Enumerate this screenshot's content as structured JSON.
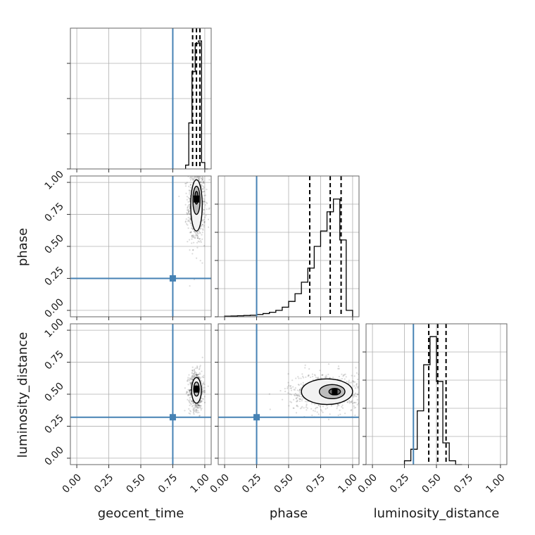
{
  "chart_data": {
    "type": "corner",
    "parameters": [
      "geocent_time",
      "phase",
      "luminosity_distance"
    ],
    "axis_range": [
      -0.05,
      1.05
    ],
    "ticks": [
      0.0,
      0.25,
      0.5,
      0.75,
      1.0
    ],
    "tick_labels": [
      "0.00",
      "0.25",
      "0.50",
      "0.75",
      "1.00"
    ],
    "grid": true,
    "truth_color": "#4682b4",
    "truths": {
      "geocent_time": 0.75,
      "phase": 0.25,
      "luminosity_distance": 0.32
    },
    "quantiles": {
      "geocent_time": [
        0.905,
        0.935,
        0.962
      ],
      "phase": [
        0.665,
        0.825,
        0.91
      ],
      "luminosity_distance": [
        0.44,
        0.51,
        0.575
      ]
    },
    "histograms": {
      "geocent_time": {
        "bins": [
          0.85,
          0.875,
          0.9,
          0.925,
          0.95,
          0.975,
          1.0,
          1.025
        ],
        "counts": [
          0.03,
          0.36,
          0.76,
          0.98,
          1.0,
          0.05,
          0.0
        ]
      },
      "phase": {
        "bins": [
          0.0,
          0.05,
          0.1,
          0.15,
          0.2,
          0.25,
          0.3,
          0.35,
          0.4,
          0.45,
          0.5,
          0.55,
          0.6,
          0.65,
          0.7,
          0.75,
          0.8,
          0.85,
          0.9,
          0.95,
          1.0
        ],
        "counts": [
          0.005,
          0.006,
          0.008,
          0.01,
          0.012,
          0.018,
          0.025,
          0.035,
          0.05,
          0.075,
          0.12,
          0.18,
          0.27,
          0.38,
          0.55,
          0.67,
          0.82,
          0.92,
          0.6,
          0.05
        ]
      },
      "luminosity_distance": {
        "bins": [
          0.25,
          0.3,
          0.35,
          0.4,
          0.45,
          0.5,
          0.55,
          0.6,
          0.65,
          0.7
        ],
        "counts": [
          0.03,
          0.12,
          0.42,
          0.78,
          1.0,
          0.65,
          0.17,
          0.03,
          0.0
        ]
      }
    },
    "panels_2d": [
      {
        "x": "geocent_time",
        "y": "phase",
        "peak": [
          0.935,
          0.87
        ],
        "contours": [
          {
            "cx": 0.935,
            "cy": 0.82,
            "rx": 0.045,
            "ry": 0.2
          },
          {
            "cx": 0.935,
            "cy": 0.86,
            "rx": 0.028,
            "ry": 0.11
          },
          {
            "cx": 0.935,
            "cy": 0.88,
            "rx": 0.013,
            "ry": 0.05
          }
        ]
      },
      {
        "x": "geocent_time",
        "y": "luminosity_distance",
        "peak": [
          0.935,
          0.54
        ],
        "contours": [
          {
            "cx": 0.935,
            "cy": 0.53,
            "rx": 0.038,
            "ry": 0.1
          },
          {
            "cx": 0.935,
            "cy": 0.54,
            "rx": 0.022,
            "ry": 0.055
          },
          {
            "cx": 0.935,
            "cy": 0.545,
            "rx": 0.01,
            "ry": 0.02
          }
        ]
      },
      {
        "x": "phase",
        "y": "luminosity_distance",
        "peak": [
          0.86,
          0.52
        ],
        "contours": [
          {
            "cx": 0.8,
            "cy": 0.52,
            "rx": 0.2,
            "ry": 0.1
          },
          {
            "cx": 0.84,
            "cy": 0.52,
            "rx": 0.1,
            "ry": 0.055
          },
          {
            "cx": 0.86,
            "cy": 0.52,
            "rx": 0.045,
            "ry": 0.025
          }
        ]
      }
    ]
  }
}
